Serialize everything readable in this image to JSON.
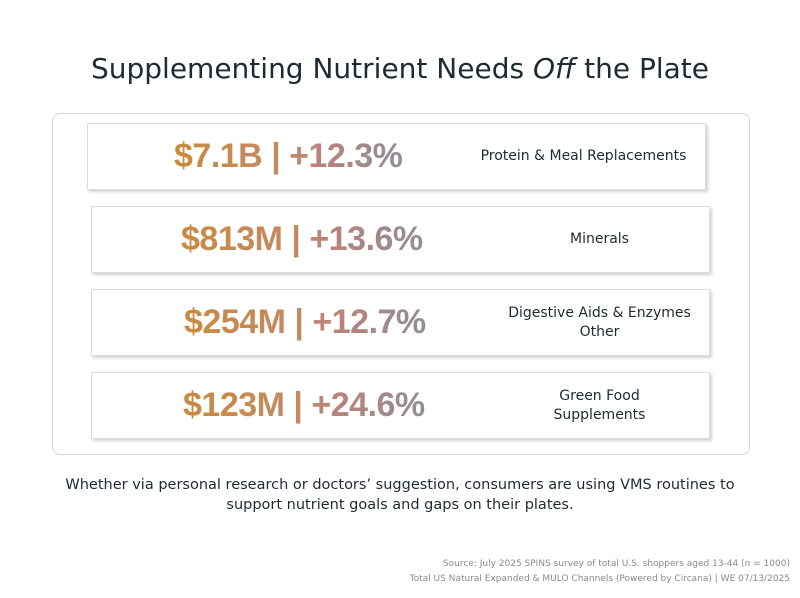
{
  "title": {
    "prefix": "Supplementing Nutrient Needs ",
    "emphasis": "Off",
    "suffix": " the Plate"
  },
  "cards": [
    {
      "value": "$7.1B",
      "separator": "|",
      "growth": "+12.3%",
      "label": "Protein & Meal Replacements"
    },
    {
      "value": "$813M",
      "separator": "|",
      "growth": "+13.6%",
      "label": "Minerals"
    },
    {
      "value": "$254M",
      "separator": "|",
      "growth": "+12.7%",
      "label": "Digestive Aids & Enzymes\nOther"
    },
    {
      "value": "$123M",
      "separator": "|",
      "growth": "+24.6%",
      "label": "Green Food\nSupplements"
    }
  ],
  "caption": "Whether via personal research or doctors’ suggestion, consumers are using VMS routines to support nutrient goals and gaps on their plates.",
  "source": {
    "line1": "Source: July 2025 SPINS survey of total U.S. shoppers aged 13-44 (n = 1000)",
    "line2": "Total US Natural Expanded & MULO Channels (Powered by Circana) | WE 07/13/2025"
  },
  "colors": {
    "metric_gradient_start": "#c98a3e",
    "metric_gradient_end": "#8e8f98",
    "text": "#1f2a33",
    "source_text": "#8a8a8a"
  }
}
